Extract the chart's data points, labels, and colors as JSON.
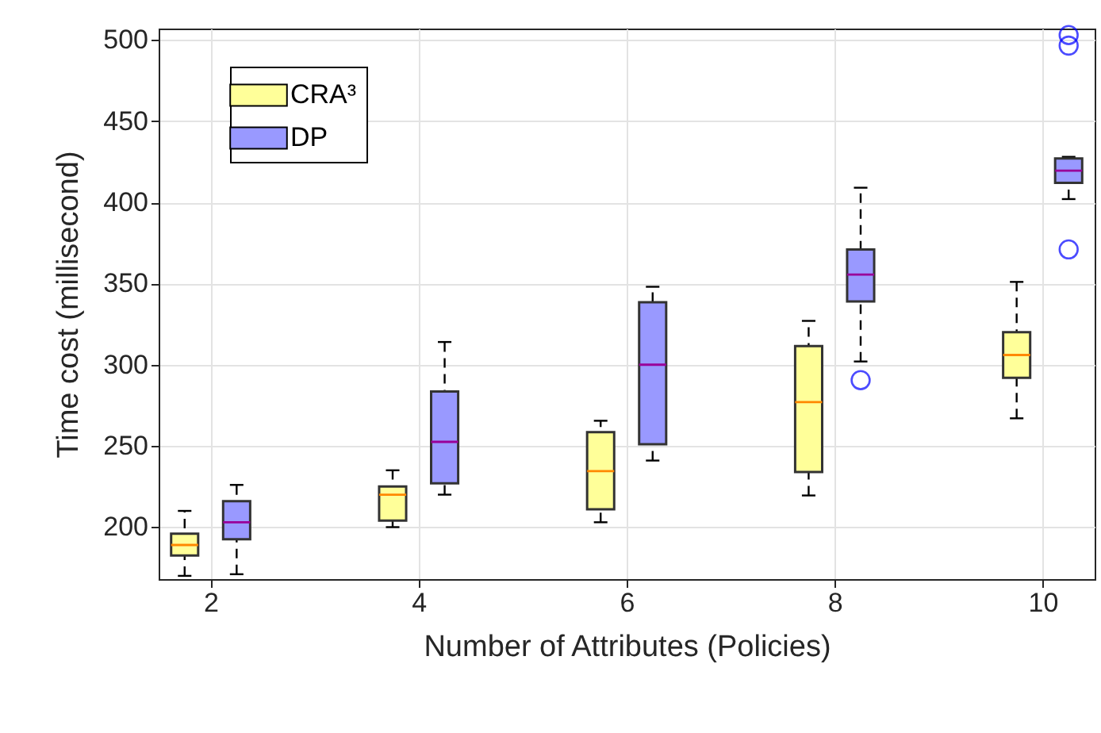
{
  "chart_data": {
    "type": "box",
    "xlabel": "Number of Attributes (Policies)",
    "ylabel": "Time cost (millisecond)",
    "categories": [
      "2",
      "4",
      "6",
      "8",
      "10"
    ],
    "ylim": [
      168,
      507
    ],
    "yticks": [
      200,
      250,
      300,
      350,
      400,
      450,
      500
    ],
    "grid": true,
    "legend": "top left",
    "line_style": "dashed",
    "marker": "circle",
    "series": [
      {
        "name": "CRA³",
        "color": "#ffff99",
        "boxes": [
          {
            "low": 170,
            "q1": 182.5,
            "median": 189,
            "q3": 196,
            "high": 210
          },
          {
            "low": 200,
            "q1": 204,
            "median": 220,
            "q3": 225,
            "high": 235
          },
          {
            "low": 203,
            "q1": 211,
            "median": 234.5,
            "q3": 258.5,
            "high": 265.5
          },
          {
            "low": 219.5,
            "q1": 234,
            "median": 277,
            "q3": 311.5,
            "high": 327
          },
          {
            "low": 267,
            "q1": 292,
            "median": 306,
            "q3": 320,
            "high": 351
          }
        ]
      },
      {
        "name": "DP",
        "color": "#9999ff",
        "boxes": [
          {
            "low": 171,
            "q1": 192.5,
            "median": 203,
            "q3": 216,
            "high": 226
          },
          {
            "low": 220,
            "q1": 227,
            "median": 252.5,
            "q3": 283.5,
            "high": 314
          },
          {
            "low": 241,
            "q1": 251,
            "median": 300,
            "q3": 338.5,
            "high": 348
          },
          {
            "low": 302,
            "q1": 339,
            "median": 355.5,
            "q3": 371,
            "high": 409,
            "outliers": [
              290.5
            ]
          },
          {
            "low": 402,
            "q1": 412,
            "median": 419.5,
            "q3": 427,
            "high": 428,
            "outliers": [
              371,
              496.5,
              503
            ]
          }
        ]
      }
    ]
  }
}
